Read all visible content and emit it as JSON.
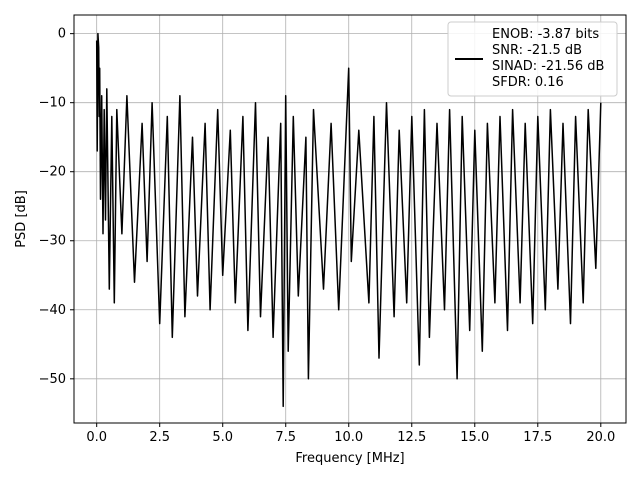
{
  "chart_data": {
    "type": "line",
    "title": "",
    "xlabel": "Frequency [MHz]",
    "ylabel": "PSD [dB]",
    "xlim": [
      -0.9,
      21.0
    ],
    "ylim": [
      -56.4,
      2.7
    ],
    "x_ticks": [
      0.0,
      2.5,
      5.0,
      7.5,
      10.0,
      12.5,
      15.0,
      17.5,
      20.0
    ],
    "x_tick_labels": [
      "0.0",
      "2.5",
      "5.0",
      "7.5",
      "10.0",
      "12.5",
      "15.0",
      "17.5",
      "20.0"
    ],
    "y_ticks": [
      0,
      -10,
      -20,
      -30,
      -40,
      -50
    ],
    "y_tick_labels": [
      "0",
      "−10",
      "−20",
      "−30",
      "−40",
      "−50"
    ],
    "grid": true,
    "legend_placement": "top-right",
    "series": [
      {
        "name": "ENOB: -3.87 bits\nSNR: -21.5 dB\nSINAD: -21.56 dB\nSFDR: 0.16",
        "color": "#000000",
        "x": [
          0.0,
          0.02,
          0.05,
          0.08,
          0.1,
          0.12,
          0.15,
          0.2,
          0.25,
          0.3,
          0.35,
          0.4,
          0.5,
          0.6,
          0.7,
          0.8,
          1.0,
          1.2,
          1.5,
          1.8,
          2.0,
          2.2,
          2.5,
          2.8,
          3.0,
          3.3,
          3.5,
          3.8,
          4.0,
          4.3,
          4.5,
          4.8,
          5.0,
          5.3,
          5.5,
          5.8,
          6.0,
          6.3,
          6.5,
          6.8,
          7.0,
          7.3,
          7.4,
          7.5,
          7.6,
          7.8,
          8.0,
          8.3,
          8.4,
          8.6,
          9.0,
          9.3,
          9.6,
          10.0,
          10.1,
          10.4,
          10.8,
          11.0,
          11.2,
          11.5,
          11.8,
          12.0,
          12.3,
          12.5,
          12.8,
          13.0,
          13.2,
          13.5,
          13.8,
          14.0,
          14.3,
          14.5,
          14.8,
          15.0,
          15.3,
          15.5,
          15.8,
          16.0,
          16.3,
          16.5,
          16.8,
          17.0,
          17.3,
          17.5,
          17.8,
          18.0,
          18.3,
          18.5,
          18.8,
          19.0,
          19.3,
          19.5,
          19.8,
          20.0
        ],
        "values": [
          -1,
          -17,
          0,
          -2,
          -12,
          -5,
          -24,
          -9,
          -29,
          -11,
          -27,
          -8,
          -37,
          -12,
          -39,
          -11,
          -29,
          -9,
          -36,
          -13,
          -33,
          -10,
          -42,
          -12,
          -44,
          -9,
          -41,
          -15,
          -38,
          -13,
          -40,
          -11,
          -35,
          -14,
          -39,
          -12,
          -43,
          -10,
          -41,
          -15,
          -44,
          -13,
          -54,
          -9,
          -46,
          -12,
          -38,
          -15,
          -50,
          -11,
          -37,
          -13,
          -40,
          -5,
          -33,
          -14,
          -39,
          -12,
          -47,
          -10,
          -41,
          -14,
          -39,
          -12,
          -48,
          -11,
          -44,
          -13,
          -40,
          -11,
          -50,
          -12,
          -43,
          -14,
          -46,
          -13,
          -39,
          -12,
          -43,
          -11,
          -39,
          -13,
          -42,
          -12,
          -40,
          -11,
          -37,
          -13,
          -42,
          -12,
          -39,
          -11,
          -34,
          -10
        ]
      }
    ]
  }
}
